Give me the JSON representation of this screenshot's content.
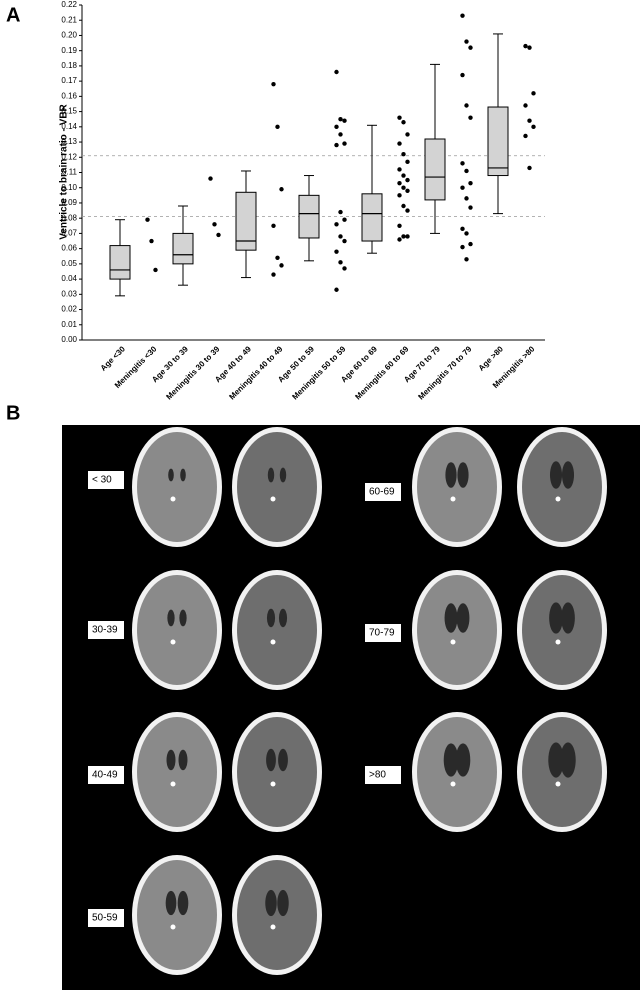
{
  "chart_data": {
    "type": "box",
    "y_label": "Ventricle to brain ratio - VBR",
    "categories": [
      "Age <30",
      "Meningitis <30",
      "Age 30 to 39",
      "Meningitis 30 to 39",
      "Age 40 to 49",
      "Meningitis 40 to 49",
      "Age 50 to 59",
      "Meningitis 50 to 59",
      "Age 60 to 69",
      "Meningitis 60 to 69",
      "Age 70 to 79",
      "Meningitis 70 to 79",
      "Age >80",
      "Meningitis >80"
    ],
    "boxes": [
      {
        "min": 0.029,
        "q1": 0.04,
        "median": 0.046,
        "q3": 0.062,
        "max": 0.079
      },
      null,
      {
        "min": 0.036,
        "q1": 0.05,
        "median": 0.056,
        "q3": 0.07,
        "max": 0.088
      },
      null,
      {
        "min": 0.041,
        "q1": 0.059,
        "median": 0.065,
        "q3": 0.097,
        "max": 0.111
      },
      null,
      {
        "min": 0.052,
        "q1": 0.067,
        "median": 0.083,
        "q3": 0.095,
        "max": 0.108
      },
      null,
      {
        "min": 0.057,
        "q1": 0.065,
        "median": 0.083,
        "q3": 0.096,
        "max": 0.141
      },
      null,
      {
        "min": 0.07,
        "q1": 0.092,
        "median": 0.107,
        "q3": 0.132,
        "max": 0.181
      },
      null,
      {
        "min": 0.083,
        "q1": 0.108,
        "median": 0.113,
        "q3": 0.153,
        "max": 0.201
      },
      null
    ],
    "points": [
      null,
      [
        0.079,
        0.065,
        0.046
      ],
      null,
      [
        0.106,
        0.076,
        0.069
      ],
      null,
      [
        0.168,
        0.14,
        0.099,
        0.075,
        0.054,
        0.049,
        0.043
      ],
      null,
      [
        0.176,
        0.145,
        0.144,
        0.14,
        0.135,
        0.129,
        0.128,
        0.084,
        0.079,
        0.076,
        0.068,
        0.065,
        0.058,
        0.051,
        0.047,
        0.033
      ],
      null,
      [
        0.146,
        0.143,
        0.135,
        0.129,
        0.122,
        0.117,
        0.112,
        0.108,
        0.105,
        0.103,
        0.1,
        0.098,
        0.095,
        0.088,
        0.085,
        0.075,
        0.068,
        0.068,
        0.066
      ],
      null,
      [
        0.213,
        0.196,
        0.192,
        0.174,
        0.154,
        0.146,
        0.116,
        0.111,
        0.103,
        0.1,
        0.093,
        0.087,
        0.073,
        0.07,
        0.063,
        0.061,
        0.053
      ],
      null,
      [
        0.193,
        0.192,
        0.162,
        0.154,
        0.144,
        0.14,
        0.134,
        0.113
      ]
    ],
    "box_color": "#d3d3d3",
    "point_color": "#000000",
    "reference_lines": [
      0.121,
      0.081
    ],
    "ylim": [
      0,
      0.22
    ],
    "yticks": [
      {
        "value": 0,
        "label": "0.00"
      },
      0.01,
      0.02,
      0.03,
      0.04,
      0.05,
      0.06,
      0.07,
      0.08,
      0.09,
      {
        "value": 0.1,
        "label": "0.10"
      },
      0.11,
      0.12,
      0.13,
      0.14,
      0.15,
      0.16,
      0.17,
      0.18,
      0.19,
      {
        "value": 0.2,
        "label": "0.20"
      },
      0.21,
      0.22
    ]
  },
  "panels": {
    "a": "A",
    "b": "B"
  },
  "ct_panel": {
    "labels": [
      "< 30",
      "30-39",
      "40-49",
      "50-59",
      "60-69",
      "70-79",
      ">80"
    ]
  }
}
